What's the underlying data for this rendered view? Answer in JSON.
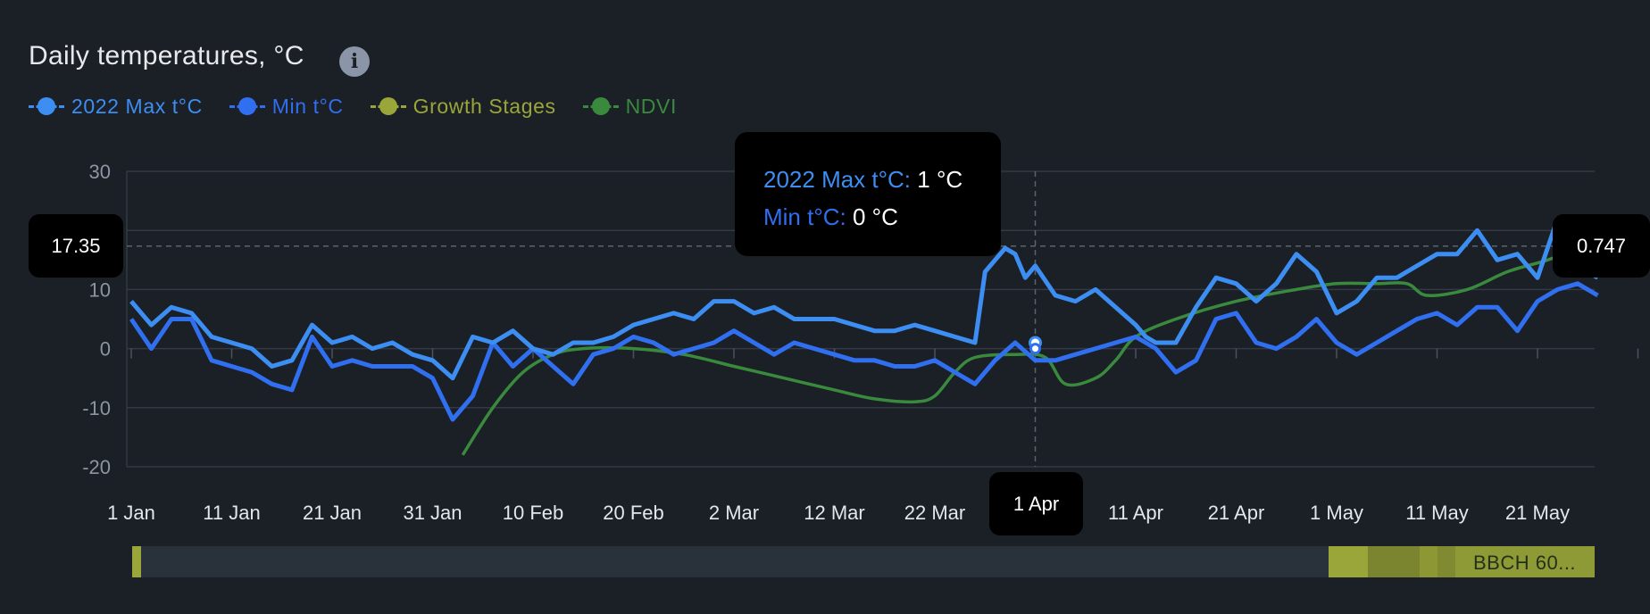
{
  "chart_data": {
    "type": "line",
    "title": "Daily temperatures, °C",
    "ylim": [
      -20,
      30
    ],
    "y_ticks": [
      "30",
      "",
      "10",
      "0",
      "-10",
      "-20"
    ],
    "x_tick_labels": [
      "1 Jan",
      "11 Jan",
      "21 Jan",
      "31 Jan",
      "10 Feb",
      "20 Feb",
      "2 Mar",
      "12 Mar",
      "22 Mar",
      "1 Apr",
      "11 Apr",
      "21 Apr",
      "1 May",
      "11 May",
      "21 May"
    ],
    "series": [
      {
        "name": "2022 Max t°C",
        "color": "#3d8ef2",
        "x_day": [
          0,
          2,
          4,
          6,
          8,
          10,
          12,
          14,
          16,
          18,
          20,
          22,
          24,
          26,
          28,
          30,
          32,
          34,
          36,
          38,
          40,
          42,
          44,
          46,
          48,
          50,
          52,
          54,
          56,
          58,
          60,
          62,
          64,
          66,
          68,
          70,
          72,
          74,
          76,
          78,
          80,
          82,
          84,
          86,
          88,
          90,
          92,
          94,
          96,
          98,
          100,
          102,
          104,
          106,
          108,
          110,
          112,
          114,
          116,
          118,
          120,
          122,
          124,
          126,
          128,
          130,
          132,
          134,
          136,
          138,
          140,
          142,
          144,
          146
        ],
        "values": [
          8,
          4,
          7,
          6,
          2,
          1,
          0,
          -3,
          -2,
          4,
          1,
          2,
          0,
          1,
          -1,
          -2,
          -5,
          2,
          1,
          3,
          0,
          -1,
          1,
          1,
          2,
          4,
          5,
          6,
          5,
          8,
          8,
          6,
          7,
          5,
          5,
          5,
          4,
          3,
          3,
          4,
          3,
          2,
          1,
          2,
          4,
          9,
          8,
          5,
          6,
          13,
          15,
          13,
          8,
          14,
          5,
          7,
          11,
          13,
          6,
          10,
          12,
          8,
          14,
          6,
          7,
          12,
          11,
          13,
          12,
          12,
          17,
          22,
          14,
          9
        ],
        "extra": {
          "x_day": [
            85,
            87,
            88,
            89,
            90,
            92,
            94,
            96,
            98,
            100,
            101,
            102,
            103,
            104,
            106,
            108,
            110,
            112,
            114,
            116,
            118,
            120,
            122,
            124,
            126,
            128,
            130,
            132,
            134,
            136,
            138,
            140,
            142,
            144,
            146
          ],
          "values": [
            13,
            17,
            16,
            12,
            14,
            9,
            8,
            10,
            7,
            4,
            2,
            1,
            1,
            1,
            7,
            12,
            11,
            8,
            11,
            16,
            13,
            6,
            8,
            12,
            12,
            14,
            16,
            16,
            20,
            15,
            16,
            12,
            22,
            14,
            12
          ]
        }
      },
      {
        "name": "Min t°C",
        "color": "#2f6ff0",
        "x_day": [
          0,
          2,
          4,
          6,
          8,
          10,
          12,
          14,
          16,
          18,
          20,
          22,
          24,
          26,
          28,
          30,
          32,
          34,
          36,
          38,
          40,
          42,
          44,
          46,
          48,
          50,
          52,
          54,
          56,
          58,
          60,
          62,
          64,
          66,
          68,
          70,
          72,
          74,
          76,
          78,
          80,
          82,
          84,
          86,
          88,
          90,
          92,
          94,
          96,
          98,
          100,
          102,
          104,
          106,
          108,
          110,
          112,
          114,
          116,
          118,
          120,
          122,
          124,
          126,
          128,
          130,
          132,
          134,
          136,
          138,
          140,
          142,
          144,
          146
        ],
        "values": [
          5,
          0,
          5,
          5,
          -2,
          -3,
          -4,
          -6,
          -7,
          2,
          -3,
          -2,
          -3,
          -3,
          -3,
          -5,
          -12,
          -8,
          1,
          -3,
          0,
          -3,
          -6,
          -1,
          0,
          2,
          1,
          -1,
          0,
          1,
          3,
          1,
          -1,
          1,
          0,
          -1,
          -2,
          -2,
          -3,
          -3,
          -2,
          -4,
          -6,
          -2,
          1,
          -2,
          -2,
          -1,
          0,
          1,
          4,
          2,
          3,
          6,
          4,
          2,
          0,
          -4,
          -3,
          3,
          6,
          1,
          -1,
          3,
          5,
          0,
          -2,
          1,
          5,
          4,
          4,
          6,
          6,
          9
        ],
        "extra": {
          "x_day": [
            100,
            101,
            102,
            104,
            106,
            108,
            110,
            112,
            114,
            116,
            118,
            120,
            122,
            124,
            126,
            128,
            130,
            132,
            134,
            136,
            138,
            140,
            142,
            144,
            146
          ],
          "values": [
            2,
            1,
            0,
            -4,
            -2,
            5,
            6,
            1,
            0,
            2,
            5,
            1,
            -1,
            1,
            3,
            5,
            6,
            4,
            7,
            7,
            3,
            8,
            10,
            11,
            9
          ]
        }
      },
      {
        "name": "Growth Stages",
        "color": "#9aa63a"
      },
      {
        "name": "NDVI",
        "color": "#3a8a3e",
        "points": [
          [
            33,
            -18
          ],
          [
            36,
            -10
          ],
          [
            39,
            -4
          ],
          [
            42,
            -1
          ],
          [
            45,
            0
          ],
          [
            50,
            0
          ],
          [
            55,
            -1
          ],
          [
            60,
            -3
          ],
          [
            65,
            -5
          ],
          [
            70,
            -7
          ],
          [
            74,
            -8.5
          ],
          [
            78,
            -9
          ],
          [
            80,
            -8
          ],
          [
            82,
            -4
          ],
          [
            84,
            -1.5
          ],
          [
            88,
            -1
          ],
          [
            91,
            -1.5
          ],
          [
            93,
            -6
          ],
          [
            96,
            -5
          ],
          [
            98,
            -2
          ],
          [
            100,
            2
          ],
          [
            104,
            5
          ],
          [
            110,
            8
          ],
          [
            116,
            10
          ],
          [
            120,
            11
          ],
          [
            124,
            11
          ],
          [
            127,
            11
          ],
          [
            129,
            9
          ],
          [
            133,
            10
          ],
          [
            137,
            13
          ],
          [
            141,
            15
          ],
          [
            145,
            17.5
          ],
          [
            148,
            17.5
          ],
          [
            151,
            15.5
          ]
        ]
      }
    ],
    "crosshair": {
      "y_value": "17.35",
      "right_value": "0.747",
      "x_date": "1 Apr"
    },
    "tooltip": {
      "max_label": "2022 Max t°C:",
      "max_value": "1 °C",
      "min_label": "Min t°C:",
      "min_value": "0 °C"
    },
    "growth_bar": {
      "label": "BBCH 60...",
      "stage_color": "#9aa63a",
      "track_color": "#29313b"
    }
  }
}
